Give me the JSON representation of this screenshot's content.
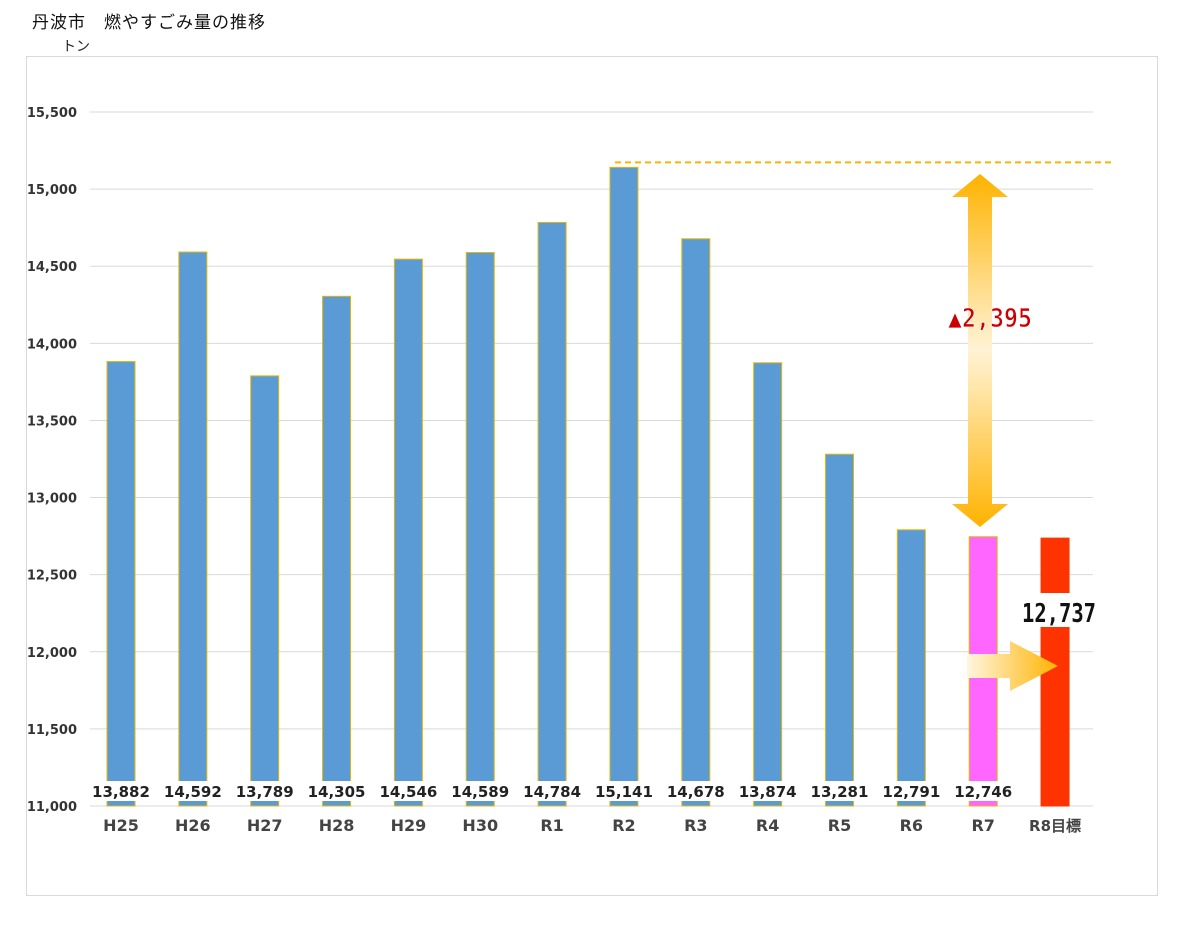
{
  "chart_data": {
    "type": "bar",
    "title": "丹波市　燃やすごみ量の推移",
    "ylabel": "トン",
    "xlabel": "",
    "ylim": [
      11000,
      15500
    ],
    "yticks": [
      11000,
      11500,
      12000,
      12500,
      13000,
      13500,
      14000,
      14500,
      15000,
      15500
    ],
    "ytick_labels": [
      "11,000",
      "11,500",
      "12,000",
      "12,500",
      "13,000",
      "13,500",
      "14,000",
      "14,500",
      "15,000",
      "15,500"
    ],
    "grid": true,
    "categories": [
      "H25",
      "H26",
      "H27",
      "H28",
      "H29",
      "H30",
      "R1",
      "R2",
      "R3",
      "R4",
      "R5",
      "R6",
      "R7",
      "R8目標"
    ],
    "values": [
      13882,
      14592,
      13789,
      14305,
      14546,
      14589,
      14784,
      15141,
      14678,
      13874,
      13281,
      12791,
      12746,
      12737
    ],
    "data_labels": [
      "13,882",
      "14,592",
      "13,789",
      "14,305",
      "14,546",
      "14,589",
      "14,784",
      "15,141",
      "14,678",
      "13,874",
      "13,281",
      "12,791",
      "12,746",
      ""
    ],
    "colors": {
      "default": "#5b9bd5",
      "border": "#e6b800",
      "r7": "#ff66ff",
      "target": "#ff3300",
      "arrow": "#ffb300",
      "reduction_text": "#cc0000",
      "reference_line": "#ffb300"
    },
    "annotations": {
      "reduction_label": "▲2,395",
      "target_label": "12,737",
      "reference_value": 15141
    }
  }
}
